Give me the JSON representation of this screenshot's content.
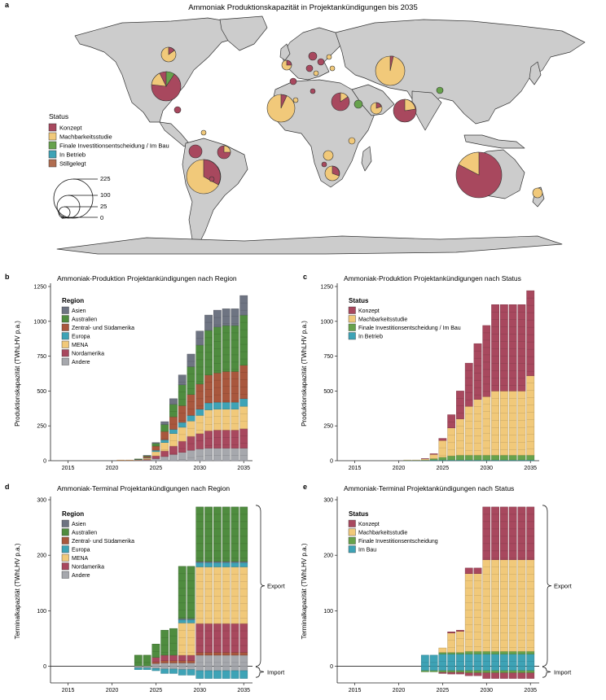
{
  "colors": {
    "Konzept": "#a8485e",
    "Machbarkeitsstudie": "#f1c97a",
    "FID": "#67a24c",
    "InBetrieb": "#3ea3b6",
    "Stillgelegt": "#b06d50",
    "Asien": "#6e7482",
    "Australien": "#4f8c3f",
    "ZSA": "#a9573d",
    "Europa": "#3ea3b6",
    "MENA": "#f1c97a",
    "Nordamerika": "#a8485e",
    "Andere": "#a6a8ad",
    "land": "#cccccc",
    "border": "#333333"
  },
  "panel_a": {
    "letter": "a",
    "title": "Ammoniak Produktionskapazität in Projektankündigungen bis 2035",
    "legend_title": "Status",
    "legend_items": [
      {
        "label": "Konzept",
        "color_key": "Konzept"
      },
      {
        "label": "Machbarkeitsstudie",
        "color_key": "Machbarkeitsstudie"
      },
      {
        "label": "Finale Investitionsentscheidung / Im Bau",
        "color_key": "FID"
      },
      {
        "label": "In Betrieb",
        "color_key": "InBetrieb"
      },
      {
        "label": "Stillgelegt",
        "color_key": "Stillgelegt"
      }
    ],
    "size_legend": [
      "225",
      "100",
      "25",
      "0"
    ]
  },
  "chart_data": [
    {
      "type": "bar",
      "letter": "b",
      "title": "Ammoniak-Produktion Projektankündigungen nach Region",
      "ylabel": "Produktionskapazität (TWhLHV p.a.)",
      "ylim": [
        0,
        1250
      ],
      "yticks": [
        "0",
        "250",
        "500",
        "750",
        "1000",
        "1250"
      ],
      "xticks": [
        "2015",
        "2020",
        "2025",
        "2030",
        "2035"
      ],
      "xlim": [
        2013,
        2036
      ],
      "legend_title": "Region",
      "legend_items": [
        "Asien",
        "Australien",
        "Zentral- und Südamerika",
        "Europa",
        "MENA",
        "Nordamerika",
        "Andere"
      ],
      "legend_keys": [
        "Asien",
        "Australien",
        "ZSA",
        "Europa",
        "MENA",
        "Nordamerika",
        "Andere"
      ],
      "x": [
        2021,
        2022,
        2023,
        2024,
        2025,
        2026,
        2027,
        2028,
        2029,
        2030,
        2031,
        2032,
        2033,
        2034,
        2035
      ],
      "series": [
        {
          "key": "Andere",
          "values": [
            2,
            2,
            3,
            5,
            15,
            30,
            45,
            60,
            75,
            85,
            90,
            90,
            90,
            90,
            90
          ]
        },
        {
          "key": "Nordamerika",
          "values": [
            1,
            1,
            2,
            5,
            20,
            40,
            60,
            80,
            100,
            110,
            125,
            130,
            130,
            130,
            140
          ]
        },
        {
          "key": "MENA",
          "values": [
            2,
            2,
            3,
            8,
            30,
            60,
            90,
            100,
            110,
            130,
            150,
            150,
            150,
            150,
            160
          ]
        },
        {
          "key": "Europa",
          "values": [
            0,
            0,
            1,
            3,
            10,
            20,
            30,
            35,
            40,
            45,
            50,
            50,
            50,
            50,
            55
          ]
        },
        {
          "key": "ZSA",
          "values": [
            0,
            0,
            2,
            10,
            30,
            60,
            90,
            120,
            150,
            180,
            200,
            210,
            220,
            220,
            240
          ]
        },
        {
          "key": "Australien",
          "values": [
            0,
            0,
            1,
            5,
            20,
            50,
            90,
            150,
            200,
            280,
            320,
            330,
            330,
            330,
            360
          ]
        },
        {
          "key": "Asien",
          "values": [
            0,
            0,
            0,
            2,
            5,
            20,
            40,
            70,
            90,
            100,
            110,
            120,
            120,
            120,
            140
          ]
        }
      ]
    },
    {
      "type": "bar",
      "letter": "c",
      "title": "Ammoniak-Produktion Projektankündigungen nach Status",
      "ylabel": "Produktionskapazität (TWhLHV p.a.)",
      "ylim": [
        0,
        1250
      ],
      "yticks": [
        "0",
        "250",
        "500",
        "750",
        "1000",
        "1250"
      ],
      "xticks": [
        "2015",
        "2020",
        "2025",
        "2030",
        "2035"
      ],
      "xlim": [
        2013,
        2036
      ],
      "legend_title": "Status",
      "legend_items": [
        "Konzept",
        "Machbarkeitsstudie",
        "Finale Investitionsentscheidung / Im Bau",
        "In Betrieb"
      ],
      "legend_keys": [
        "Konzept",
        "Machbarkeitsstudie",
        "FID",
        "InBetrieb"
      ],
      "x": [
        2021,
        2022,
        2023,
        2024,
        2025,
        2026,
        2027,
        2028,
        2029,
        2030,
        2031,
        2032,
        2033,
        2034,
        2035
      ],
      "series": [
        {
          "key": "InBetrieb",
          "values": [
            3,
            3,
            3,
            5,
            5,
            5,
            5,
            5,
            5,
            5,
            5,
            5,
            5,
            5,
            5
          ]
        },
        {
          "key": "FID",
          "values": [
            0,
            0,
            2,
            10,
            20,
            30,
            35,
            35,
            35,
            35,
            35,
            35,
            35,
            35,
            35
          ]
        },
        {
          "key": "Machbarkeitsstudie",
          "values": [
            2,
            2,
            8,
            30,
            120,
            200,
            260,
            350,
            400,
            420,
            460,
            460,
            460,
            460,
            570
          ]
        },
        {
          "key": "Konzept",
          "values": [
            0,
            0,
            2,
            5,
            15,
            95,
            200,
            310,
            400,
            510,
            620,
            620,
            620,
            620,
            610
          ]
        }
      ]
    },
    {
      "type": "bar",
      "letter": "d",
      "title": "Ammoniak-Terminal Projektankündigungen nach Region",
      "ylabel": "Terminalkapazität (TWhLHV p.a.)",
      "ylim": [
        -30,
        300
      ],
      "yticks": [
        "0",
        "100",
        "200",
        "300"
      ],
      "xticks": [
        "2015",
        "2020",
        "2025",
        "2030",
        "2035"
      ],
      "xlim": [
        2013,
        2036
      ],
      "legend_title": "Region",
      "legend_items": [
        "Asien",
        "Australien",
        "Zentral- und Südamerika",
        "Europa",
        "MENA",
        "Nordamerika",
        "Andere"
      ],
      "legend_keys": [
        "Asien",
        "Australien",
        "ZSA",
        "Europa",
        "MENA",
        "Nordamerika",
        "Andere"
      ],
      "x": [
        2023,
        2024,
        2025,
        2026,
        2027,
        2028,
        2029,
        2030,
        2031,
        2032,
        2033,
        2034,
        2035
      ],
      "series": [
        {
          "key": "Andere",
          "values": [
            0,
            0,
            5,
            6,
            6,
            6,
            6,
            20,
            20,
            20,
            20,
            20,
            20
          ]
        },
        {
          "key": "ZSA",
          "values": [
            0,
            0,
            3,
            4,
            4,
            4,
            4,
            5,
            5,
            5,
            5,
            5,
            5
          ]
        },
        {
          "key": "Nordamerika",
          "values": [
            0,
            0,
            8,
            10,
            10,
            10,
            10,
            52,
            52,
            52,
            52,
            52,
            52
          ]
        },
        {
          "key": "MENA",
          "values": [
            0,
            0,
            0,
            0,
            0,
            58,
            58,
            102,
            102,
            102,
            102,
            102,
            102
          ]
        },
        {
          "key": "Europa",
          "values": [
            0,
            0,
            0,
            0,
            0,
            6,
            6,
            8,
            8,
            8,
            8,
            8,
            8
          ]
        },
        {
          "key": "Asien",
          "values": [
            0,
            0,
            0,
            0,
            0,
            2,
            2,
            2,
            2,
            2,
            2,
            2,
            2
          ]
        },
        {
          "key": "Australien",
          "values": [
            20,
            20,
            24,
            45,
            48,
            94,
            94,
            98,
            98,
            98,
            98,
            98,
            98
          ]
        }
      ],
      "negative_series": [
        {
          "key": "Andere",
          "values": [
            -3,
            -3,
            -4,
            -5,
            -5,
            -6,
            -6,
            -8,
            -8,
            -8,
            -8,
            -8,
            -8
          ]
        },
        {
          "key": "Europa",
          "values": [
            -3,
            -3,
            -4,
            -8,
            -8,
            -10,
            -10,
            -14,
            -14,
            -14,
            -14,
            -14,
            -14
          ]
        }
      ],
      "brace_upper": "Export",
      "brace_lower": "Import"
    },
    {
      "type": "bar",
      "letter": "e",
      "title": "Ammoniak-Terminal Projektankündigungen nach Status",
      "ylabel": "Terminalkapazität (TWhLHV p.a.)",
      "ylim": [
        -30,
        300
      ],
      "yticks": [
        "0",
        "100",
        "200",
        "300"
      ],
      "xticks": [
        "2015",
        "2020",
        "2025",
        "2030",
        "2035"
      ],
      "xlim": [
        2013,
        2036
      ],
      "legend_title": "Status",
      "legend_items": [
        "Konzept",
        "Machbarkeitsstudie",
        "Finale Investitionsentscheidung",
        "Im Bau"
      ],
      "legend_keys": [
        "Konzept",
        "Machbarkeitsstudie",
        "FID",
        "InBetrieb"
      ],
      "x": [
        2023,
        2024,
        2025,
        2026,
        2027,
        2028,
        2029,
        2030,
        2031,
        2032,
        2033,
        2034,
        2035
      ],
      "series": [
        {
          "key": "InBetrieb",
          "values": [
            20,
            20,
            22,
            22,
            22,
            22,
            22,
            22,
            22,
            22,
            22,
            22,
            22
          ]
        },
        {
          "key": "FID",
          "values": [
            0,
            0,
            3,
            3,
            3,
            5,
            5,
            5,
            5,
            5,
            5,
            5,
            5
          ]
        },
        {
          "key": "Machbarkeitsstudie",
          "values": [
            0,
            0,
            8,
            35,
            38,
            140,
            140,
            165,
            165,
            165,
            165,
            165,
            165
          ]
        },
        {
          "key": "Konzept",
          "values": [
            0,
            0,
            0,
            2,
            2,
            10,
            10,
            95,
            95,
            95,
            95,
            95,
            95
          ]
        }
      ],
      "negative_series": [
        {
          "key": "InBetrieb",
          "values": [
            -8,
            -8,
            -8,
            -8,
            -8,
            -8,
            -8,
            -8,
            -8,
            -8,
            -8,
            -8,
            -8
          ]
        },
        {
          "key": "FID",
          "values": [
            -2,
            -2,
            -3,
            -3,
            -3,
            -4,
            -4,
            -4,
            -4,
            -4,
            -4,
            -4,
            -4
          ]
        },
        {
          "key": "Konzept",
          "values": [
            0,
            0,
            -2,
            -3,
            -3,
            -5,
            -5,
            -10,
            -10,
            -10,
            -10,
            -10,
            -10
          ]
        }
      ],
      "brace_upper": "Export",
      "brace_lower": "Import"
    }
  ]
}
